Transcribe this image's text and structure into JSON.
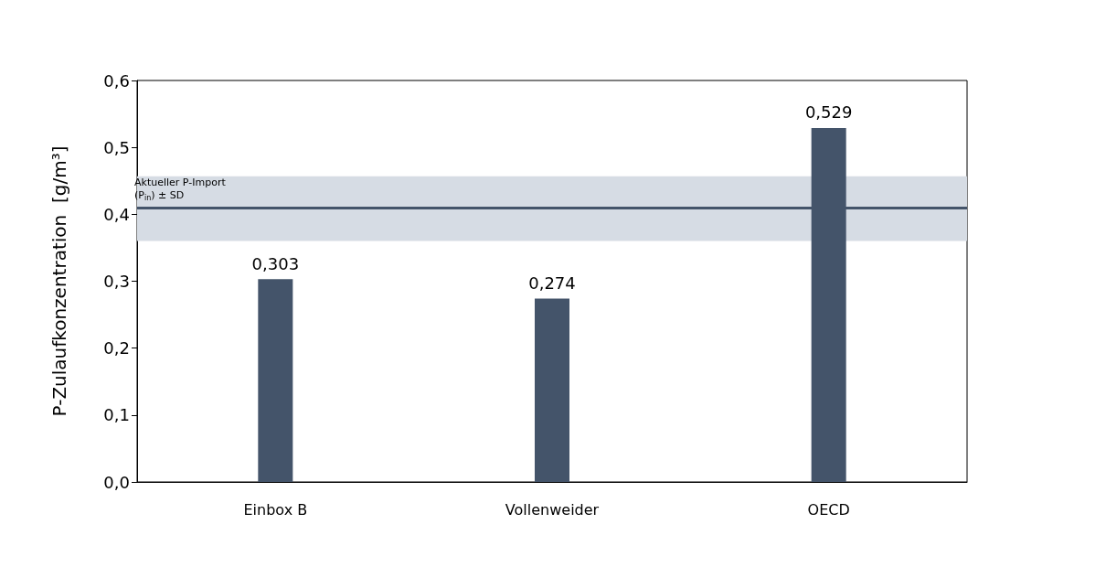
{
  "chart_data": {
    "type": "bar",
    "ylabel": "P-Zulaufkonzentration  [g/m³]",
    "categories": [
      "Einbox B",
      "Vollenweider",
      "OECD"
    ],
    "values": [
      0.303,
      0.274,
      0.529
    ],
    "color": "#44546a",
    "value_labels": [
      "0,303",
      "0,274",
      "0,529"
    ],
    "ylim": [
      0,
      0.6
    ],
    "yticks": [
      {
        "value": 0,
        "label": "0,0"
      },
      {
        "value": 0.1,
        "label": "0,1"
      },
      {
        "value": 0.2,
        "label": "0,2"
      },
      {
        "value": 0.3,
        "label": "0,3"
      },
      {
        "value": 0.4,
        "label": "0,4"
      },
      {
        "value": 0.5,
        "label": "0,5"
      },
      {
        "value": 0.6,
        "label": "0,6"
      }
    ],
    "ref_lines": [
      {
        "axis": "y",
        "value": 0.41,
        "color": "#44546a",
        "line_style": "solid"
      }
    ],
    "bands": [
      {
        "axis": "y",
        "from": 0.36,
        "to": 0.457,
        "label": "Aktueller P-Import (P$_{in}$) ± SD",
        "color": "#d6dce4"
      }
    ],
    "grid": false
  }
}
